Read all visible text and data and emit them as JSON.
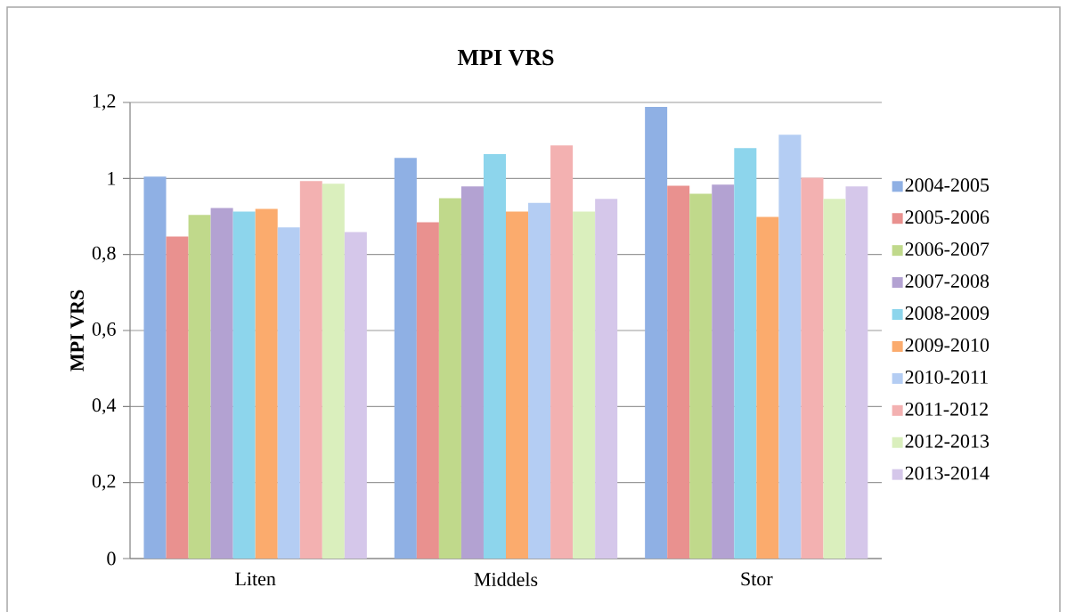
{
  "chart_data": {
    "type": "bar",
    "title": "MPI VRS",
    "ylabel": "MPI VRS",
    "categories": [
      "Liten",
      "Middels",
      "Stor"
    ],
    "series": [
      {
        "name": "2004-2005",
        "color": "#8fb0e4",
        "values": [
          1.005,
          1.054,
          1.188
        ]
      },
      {
        "name": "2005-2006",
        "color": "#e9918f",
        "values": [
          0.847,
          0.885,
          0.981
        ]
      },
      {
        "name": "2006-2007",
        "color": "#c0d98b",
        "values": [
          0.904,
          0.948,
          0.96
        ]
      },
      {
        "name": "2007-2008",
        "color": "#b3a2d2",
        "values": [
          0.922,
          0.979,
          0.984
        ]
      },
      {
        "name": "2008-2009",
        "color": "#8dd5ec",
        "values": [
          0.913,
          1.064,
          1.08
        ]
      },
      {
        "name": "2009-2010",
        "color": "#fbab6d",
        "values": [
          0.92,
          0.913,
          0.899
        ]
      },
      {
        "name": "2010-2011",
        "color": "#b4cdf3",
        "values": [
          0.871,
          0.936,
          1.115
        ]
      },
      {
        "name": "2011-2012",
        "color": "#f3b1b1",
        "values": [
          0.993,
          1.087,
          1.002
        ]
      },
      {
        "name": "2012-2013",
        "color": "#daefbd",
        "values": [
          0.986,
          0.913,
          0.946
        ]
      },
      {
        "name": "2013-2014",
        "color": "#d5c7ea",
        "values": [
          0.859,
          0.946,
          0.979
        ]
      }
    ],
    "ylim": [
      0,
      1.2
    ],
    "yticks": [
      0,
      {
        "value": 0.2,
        "label": "0,2"
      },
      {
        "value": 0.4,
        "label": "0,4"
      },
      {
        "value": 0.6,
        "label": "0,6"
      },
      {
        "value": 0.8,
        "label": "0,8"
      },
      1,
      {
        "value": 1.2,
        "label": "1,2"
      }
    ],
    "grid": "y",
    "legend": "right"
  }
}
